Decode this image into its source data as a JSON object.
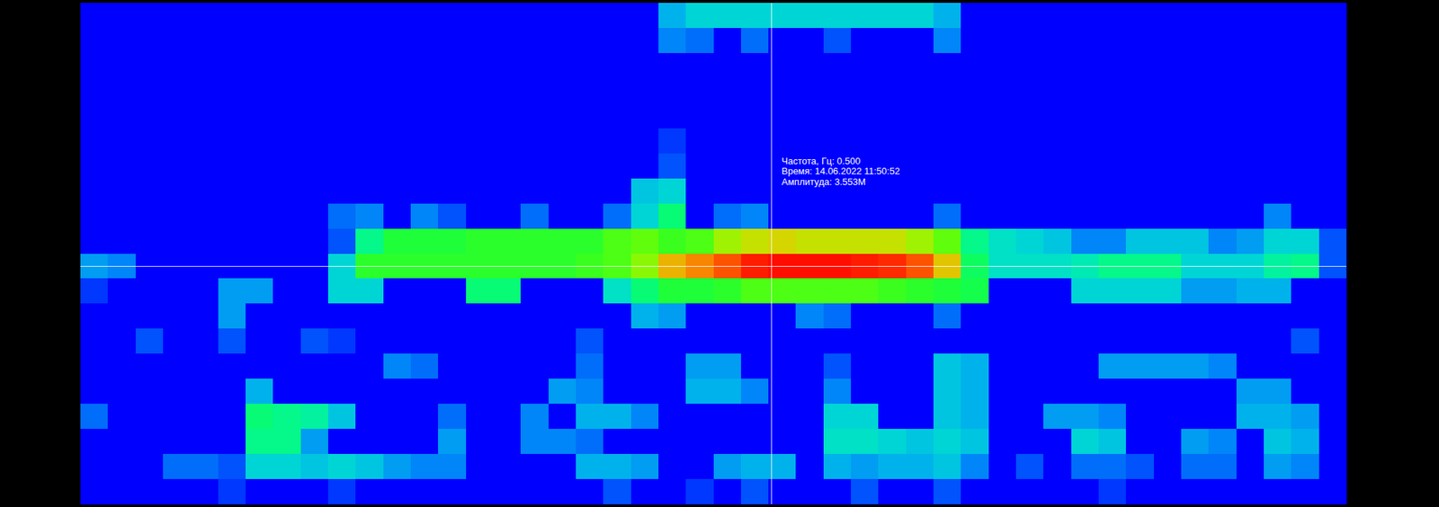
{
  "chart_data": {
    "type": "heatmap",
    "xlim": [
      0,
      46
    ],
    "ylim": [
      0,
      20
    ],
    "zlim": [
      0,
      3.6
    ],
    "tick_labels": false,
    "cells": [
      [
        0,
        0,
        0,
        0,
        0,
        0,
        0,
        0,
        0,
        0,
        0,
        0,
        0,
        0,
        0,
        0,
        0,
        0,
        0,
        0,
        0,
        0.7,
        0.9,
        0.9,
        0.9,
        0.9,
        0.9,
        0.9,
        0.9,
        0.9,
        0.9,
        0.7,
        0,
        0,
        0,
        0,
        0,
        0,
        0,
        0,
        0,
        0,
        0,
        0,
        0,
        0
      ],
      [
        0,
        0,
        0,
        0,
        0,
        0,
        0,
        0,
        0,
        0,
        0,
        0,
        0,
        0,
        0,
        0,
        0,
        0,
        0,
        0,
        0,
        0.5,
        0.4,
        0,
        0.4,
        0,
        0,
        0.3,
        0,
        0,
        0,
        0.5,
        0,
        0,
        0,
        0,
        0,
        0,
        0,
        0,
        0,
        0,
        0,
        0,
        0,
        0
      ],
      [
        0,
        0,
        0,
        0,
        0,
        0,
        0,
        0,
        0,
        0,
        0,
        0,
        0,
        0,
        0,
        0,
        0,
        0,
        0,
        0,
        0,
        0,
        0,
        0,
        0,
        0,
        0,
        0,
        0,
        0,
        0,
        0,
        0,
        0,
        0,
        0,
        0,
        0,
        0,
        0,
        0,
        0,
        0,
        0,
        0,
        0
      ],
      [
        0,
        0,
        0,
        0,
        0,
        0,
        0,
        0,
        0,
        0,
        0,
        0,
        0,
        0,
        0,
        0,
        0,
        0,
        0,
        0,
        0,
        0,
        0,
        0,
        0,
        0,
        0,
        0,
        0,
        0,
        0,
        0,
        0,
        0,
        0,
        0,
        0,
        0,
        0,
        0,
        0,
        0,
        0,
        0,
        0,
        0
      ],
      [
        0,
        0,
        0,
        0,
        0,
        0,
        0,
        0,
        0,
        0,
        0,
        0,
        0,
        0,
        0,
        0,
        0,
        0,
        0,
        0,
        0,
        0,
        0,
        0,
        0,
        0,
        0,
        0,
        0,
        0,
        0,
        0,
        0,
        0,
        0,
        0,
        0,
        0,
        0,
        0,
        0,
        0,
        0,
        0,
        0,
        0
      ],
      [
        0,
        0,
        0,
        0,
        0,
        0,
        0,
        0,
        0,
        0,
        0,
        0,
        0,
        0,
        0,
        0,
        0,
        0,
        0,
        0,
        0,
        0.2,
        0,
        0,
        0,
        0,
        0,
        0,
        0,
        0,
        0,
        0,
        0,
        0,
        0,
        0,
        0,
        0,
        0,
        0,
        0,
        0,
        0,
        0,
        0,
        0
      ],
      [
        0,
        0,
        0,
        0,
        0,
        0,
        0,
        0,
        0,
        0,
        0,
        0,
        0,
        0,
        0,
        0,
        0,
        0,
        0,
        0,
        0,
        0.3,
        0,
        0,
        0,
        0,
        0,
        0,
        0,
        0,
        0,
        0,
        0,
        0,
        0,
        0,
        0,
        0,
        0,
        0,
        0,
        0,
        0,
        0,
        0,
        0
      ],
      [
        0,
        0,
        0,
        0,
        0,
        0,
        0,
        0,
        0,
        0,
        0,
        0,
        0,
        0,
        0,
        0,
        0,
        0,
        0,
        0,
        0.8,
        0.9,
        0,
        0,
        0,
        0,
        0,
        0,
        0,
        0,
        0,
        0,
        0,
        0,
        0,
        0,
        0,
        0,
        0,
        0,
        0,
        0,
        0,
        0,
        0,
        0
      ],
      [
        0,
        0,
        0,
        0,
        0,
        0,
        0,
        0,
        0,
        0.4,
        0.5,
        0,
        0.5,
        0.3,
        0,
        0,
        0.4,
        0,
        0,
        0.4,
        0.9,
        1.4,
        0,
        0.4,
        0.5,
        0,
        0,
        0,
        0,
        0,
        0,
        0.4,
        0,
        0,
        0,
        0,
        0,
        0,
        0,
        0,
        0,
        0,
        0,
        0.5,
        0,
        0
      ],
      [
        0,
        0,
        0,
        0,
        0,
        0,
        0,
        0,
        0,
        0.3,
        1.3,
        1.7,
        1.7,
        1.7,
        1.8,
        1.8,
        1.8,
        1.8,
        1.8,
        2.0,
        2.1,
        1.9,
        2.0,
        2.4,
        2.6,
        2.7,
        2.6,
        2.6,
        2.6,
        2.6,
        2.4,
        2.1,
        1.3,
        1.0,
        0.9,
        0.8,
        0.5,
        0.5,
        0.8,
        0.8,
        0.8,
        0.5,
        0.6,
        0.9,
        0.9,
        0.3
      ],
      [
        0.6,
        0.5,
        0,
        0,
        0,
        0,
        0,
        0,
        0,
        0.9,
        1.8,
        1.8,
        1.8,
        1.8,
        1.8,
        1.8,
        1.8,
        1.8,
        1.9,
        2.0,
        2.3,
        2.9,
        3.1,
        3.3,
        3.5,
        3.553,
        3.55,
        3.55,
        3.5,
        3.45,
        3.3,
        2.8,
        1.5,
        1.0,
        1.0,
        1.0,
        1.1,
        1.3,
        1.3,
        1.3,
        0.9,
        0.9,
        0.9,
        1.2,
        1.3,
        0.3
      ],
      [
        0.2,
        0,
        0,
        0,
        0,
        0.6,
        0.6,
        0,
        0,
        0.9,
        0.9,
        0,
        0,
        0,
        1.4,
        1.4,
        0,
        0,
        0,
        1.0,
        1.4,
        1.7,
        1.7,
        1.8,
        2.0,
        2.0,
        2.0,
        2.0,
        2.0,
        1.9,
        1.8,
        1.7,
        1.6,
        0,
        0,
        0,
        0.9,
        0.9,
        0.9,
        0.9,
        0.6,
        0.6,
        0.7,
        0.7,
        0,
        0
      ],
      [
        0,
        0,
        0,
        0,
        0,
        0.6,
        0,
        0,
        0,
        0,
        0,
        0,
        0,
        0,
        0,
        0,
        0,
        0,
        0,
        0,
        0.7,
        0.6,
        0,
        0,
        0,
        0,
        0.5,
        0.4,
        0,
        0,
        0,
        0.4,
        0,
        0,
        0,
        0,
        0,
        0,
        0,
        0,
        0,
        0,
        0,
        0,
        0,
        0
      ],
      [
        0,
        0,
        0.3,
        0,
        0,
        0.3,
        0,
        0,
        0.3,
        0.2,
        0,
        0,
        0,
        0,
        0,
        0,
        0,
        0,
        0.3,
        0,
        0,
        0,
        0,
        0,
        0,
        0,
        0,
        0,
        0,
        0,
        0,
        0,
        0,
        0,
        0,
        0,
        0,
        0,
        0,
        0,
        0,
        0,
        0,
        0,
        0.3,
        0
      ],
      [
        0,
        0,
        0,
        0,
        0,
        0,
        0,
        0,
        0,
        0,
        0,
        0.5,
        0.4,
        0,
        0,
        0,
        0,
        0,
        0.4,
        0,
        0,
        0,
        0.6,
        0.6,
        0,
        0,
        0,
        0.3,
        0,
        0,
        0,
        0.8,
        0.7,
        0,
        0,
        0,
        0,
        0.6,
        0.6,
        0.6,
        0.6,
        0.5,
        0,
        0,
        0,
        0
      ],
      [
        0,
        0,
        0,
        0,
        0,
        0,
        0.7,
        0,
        0,
        0,
        0,
        0,
        0,
        0,
        0,
        0,
        0,
        0.6,
        0.5,
        0,
        0,
        0,
        0.7,
        0.7,
        0.5,
        0,
        0,
        0.5,
        0,
        0,
        0,
        0.8,
        0.7,
        0,
        0,
        0,
        0,
        0,
        0,
        0,
        0,
        0,
        0.6,
        0.6,
        0,
        0
      ],
      [
        0.4,
        0,
        0,
        0,
        0,
        0,
        1.4,
        1.3,
        1.2,
        0.8,
        0,
        0,
        0,
        0.4,
        0,
        0,
        0.5,
        0,
        0.7,
        0.7,
        0.5,
        0,
        0,
        0,
        0,
        0,
        0,
        0.9,
        0.9,
        0,
        0,
        0.8,
        0.7,
        0,
        0,
        0.6,
        0.6,
        0.5,
        0,
        0,
        0,
        0,
        0.7,
        0.7,
        0.6,
        0
      ],
      [
        0,
        0,
        0,
        0,
        0,
        0,
        1.3,
        1.3,
        0.6,
        0,
        0,
        0,
        0,
        0.6,
        0,
        0,
        0.5,
        0.5,
        0.4,
        0,
        0,
        0,
        0,
        0,
        0,
        0,
        0,
        1.0,
        1.0,
        0.9,
        0.8,
        0.9,
        0.8,
        0,
        0,
        0,
        0.9,
        0.8,
        0,
        0,
        0.6,
        0.5,
        0,
        0.8,
        0.7,
        0
      ],
      [
        0,
        0,
        0,
        0.4,
        0.4,
        0.3,
        0.9,
        0.9,
        0.8,
        0.9,
        0.8,
        0.6,
        0.5,
        0.5,
        0,
        0,
        0,
        0,
        0.7,
        0.7,
        0.6,
        0,
        0,
        0.6,
        0.7,
        0.7,
        0,
        0.7,
        0.6,
        0.7,
        0.7,
        0.8,
        0.5,
        0,
        0.3,
        0,
        0.4,
        0.4,
        0.3,
        0,
        0.4,
        0.4,
        0,
        0.6,
        0.5,
        0
      ],
      [
        0,
        0,
        0,
        0,
        0,
        0.2,
        0,
        0,
        0,
        0.2,
        0,
        0,
        0,
        0,
        0,
        0,
        0,
        0,
        0,
        0.3,
        0,
        0,
        0.2,
        0,
        0.3,
        0,
        0,
        0,
        0.3,
        0,
        0,
        0.3,
        0,
        0,
        0,
        0,
        0,
        0.2,
        0,
        0,
        0,
        0,
        0,
        0,
        0,
        0
      ]
    ],
    "cursor": {
      "x": 25.1,
      "y": 10.5
    },
    "annotations": [
      "Частота, Гц: 0.500",
      "Время: 14.06.2022 11:50:52",
      "Амплитуда: 3.553M"
    ]
  }
}
